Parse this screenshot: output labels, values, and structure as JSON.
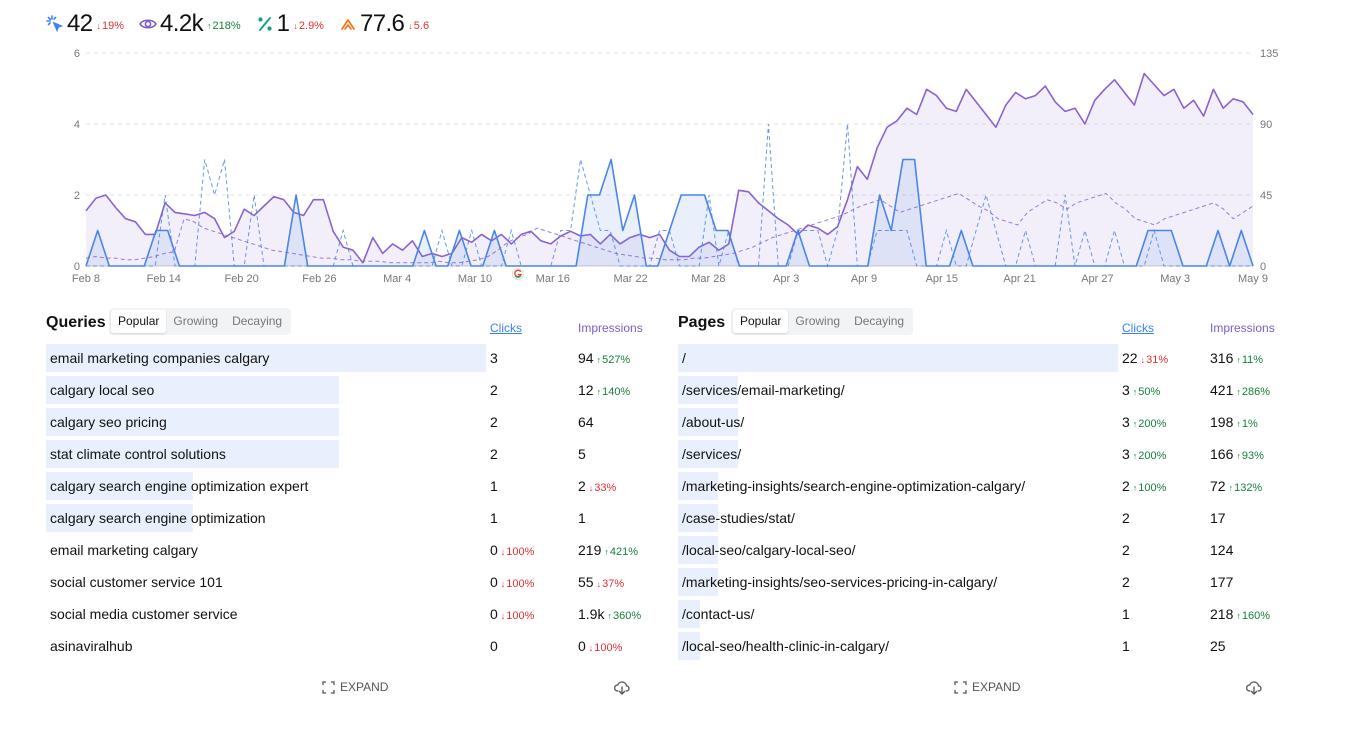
{
  "stats": [
    {
      "icon": "cursor-click-icon",
      "value": "42",
      "change": "19%",
      "dir": "down",
      "color": "#3b82f6"
    },
    {
      "icon": "eye-icon",
      "value": "4.2k",
      "change": "218%",
      "dir": "up",
      "color": "#7c5cc4"
    },
    {
      "icon": "percent-icon",
      "value": "1",
      "change": "2.9%",
      "dir": "down",
      "color": "#0f9f86"
    },
    {
      "icon": "rank-chevron-icon",
      "value": "77.6",
      "change": "5.6",
      "dir": "down",
      "color": "#f97316"
    }
  ],
  "chart_data": {
    "type": "line",
    "x_labels": [
      "Feb 8",
      "Feb 14",
      "Feb 20",
      "Feb 26",
      "Mar 4",
      "Mar 10",
      "Mar 16",
      "Mar 22",
      "Mar 28",
      "Apr 3",
      "Apr 9",
      "Apr 15",
      "Apr 21",
      "Apr 27",
      "May 3",
      "May 9"
    ],
    "y_left_ticks": [
      "0",
      "2",
      "4",
      "6"
    ],
    "y_right_ticks": [
      "0",
      "45",
      "90",
      "135"
    ],
    "ylim_left": [
      0,
      6
    ],
    "ylim_right": [
      0,
      135
    ],
    "grid": true,
    "annotation_icon": "google-icon",
    "series": [
      {
        "axis": "left",
        "style": "solid-area",
        "color": "#4a86e8",
        "values": [
          0,
          1,
          0,
          0,
          0,
          0,
          1,
          1,
          0,
          0,
          0,
          0,
          0,
          0,
          0,
          0,
          0,
          0,
          2,
          0,
          0,
          0,
          0,
          0,
          0,
          0,
          0,
          0,
          0,
          1,
          0,
          0,
          1,
          0,
          0,
          1,
          0,
          0,
          0,
          0,
          0,
          0,
          0,
          2,
          2,
          3,
          1,
          2,
          0,
          0,
          1,
          2,
          2,
          2,
          1,
          1,
          0,
          0,
          0,
          0,
          0,
          1,
          0,
          0,
          0,
          0,
          0,
          0,
          2,
          1,
          3,
          3,
          0,
          0,
          0,
          1,
          0,
          0,
          0,
          0,
          0,
          0,
          0,
          0,
          0,
          0,
          0,
          0,
          0,
          0,
          0,
          1,
          1,
          1,
          0,
          0,
          0,
          1,
          0,
          1,
          0
        ]
      },
      {
        "axis": "right",
        "style": "solid-area",
        "color": "#8b63d0",
        "values": [
          35,
          43,
          45,
          37,
          30,
          28,
          20,
          20,
          40,
          34,
          33,
          32,
          34,
          30,
          18,
          22,
          36,
          32,
          38,
          44,
          42,
          34,
          32,
          42,
          42,
          22,
          12,
          10,
          2,
          18,
          8,
          14,
          10,
          16,
          6,
          8,
          6,
          8,
          18,
          15,
          20,
          16,
          20,
          14,
          20,
          22,
          16,
          14,
          19,
          22,
          19,
          20,
          14,
          20,
          14,
          18,
          20,
          18,
          20,
          10,
          6,
          6,
          12,
          15,
          10,
          14,
          48,
          47,
          40,
          35,
          30,
          26,
          20,
          26,
          24,
          20,
          25,
          42,
          63,
          55,
          75,
          88,
          92,
          100,
          96,
          112,
          108,
          100,
          98,
          112,
          104,
          96,
          88,
          102,
          110,
          106,
          108,
          114,
          104,
          98,
          100,
          90,
          105,
          112,
          118,
          110,
          102,
          122,
          115,
          108,
          112,
          100,
          105,
          95,
          112,
          100,
          106,
          104,
          96
        ]
      },
      {
        "axis": "left",
        "style": "dashed",
        "color": "#4a86e8",
        "values": [
          0,
          0,
          0,
          0,
          0,
          0,
          0,
          0,
          2,
          0,
          0,
          0,
          3,
          2,
          3,
          0,
          0,
          2,
          0,
          0,
          0,
          0,
          0,
          0,
          0,
          0,
          1,
          0,
          0,
          0,
          0,
          0,
          0,
          0,
          0,
          0,
          1,
          0,
          0,
          1,
          0,
          0,
          0,
          1,
          0,
          0,
          0,
          0,
          1,
          1,
          3,
          2,
          1,
          1,
          0,
          0,
          0,
          0,
          1,
          1,
          0,
          0,
          0,
          2,
          0,
          1,
          0,
          0,
          0,
          4,
          0,
          0,
          1,
          1,
          1,
          0,
          1,
          4,
          0,
          0,
          1,
          1,
          1,
          1,
          0,
          0,
          0,
          1,
          0,
          0,
          1,
          2,
          1,
          0,
          0,
          1,
          0,
          0,
          0,
          2,
          0,
          1,
          0,
          0,
          1,
          0,
          0,
          0,
          1,
          0,
          0,
          0,
          0,
          0,
          0,
          0,
          0,
          0,
          0
        ]
      },
      {
        "axis": "right",
        "style": "dashed",
        "color": "#8b63d0",
        "values": [
          5,
          6,
          5,
          5,
          4,
          4,
          5,
          6,
          8,
          9,
          30,
          28,
          24,
          22,
          20,
          18,
          16,
          14,
          12,
          10,
          9,
          8,
          7,
          6,
          5,
          5,
          4,
          4,
          3,
          3,
          3,
          2,
          2,
          2,
          2,
          2,
          3,
          2,
          2,
          3,
          4,
          6,
          10,
          15,
          18,
          20,
          24,
          22,
          20,
          18,
          16,
          14,
          12,
          10,
          8,
          7,
          6,
          5,
          5,
          4,
          4,
          4,
          5,
          5,
          6,
          7,
          8,
          10,
          12,
          15,
          18,
          20,
          22,
          24,
          26,
          28,
          30,
          32,
          35,
          38,
          40,
          42,
          38,
          34,
          36,
          38,
          40,
          42,
          44,
          46,
          42,
          38,
          35,
          30,
          28,
          26,
          34,
          38,
          42,
          40,
          36,
          40,
          42,
          44,
          46,
          40,
          36,
          30,
          28,
          26,
          30,
          32,
          34,
          36,
          38,
          40,
          36,
          30,
          34,
          38
        ]
      }
    ]
  },
  "queries": {
    "title": "Queries",
    "tabs": [
      "Popular",
      "Growing",
      "Decaying"
    ],
    "active_tab": 0,
    "col_clicks": "Clicks",
    "col_impressions": "Impressions",
    "rows": [
      {
        "label": "email marketing companies calgary",
        "clicks": "3",
        "clicks_delta": "",
        "clicks_dir": "",
        "impr": "94",
        "impr_delta": "527%",
        "impr_dir": "up",
        "bar": 1.0
      },
      {
        "label": "calgary local seo",
        "clicks": "2",
        "clicks_delta": "",
        "clicks_dir": "",
        "impr": "12",
        "impr_delta": "140%",
        "impr_dir": "up",
        "bar": 0.667
      },
      {
        "label": "calgary seo pricing",
        "clicks": "2",
        "clicks_delta": "",
        "clicks_dir": "",
        "impr": "64",
        "impr_delta": "",
        "impr_dir": "",
        "bar": 0.667
      },
      {
        "label": "stat climate control solutions",
        "clicks": "2",
        "clicks_delta": "",
        "clicks_dir": "",
        "impr": "5",
        "impr_delta": "",
        "impr_dir": "",
        "bar": 0.667
      },
      {
        "label": "calgary search engine optimization expert",
        "clicks": "1",
        "clicks_delta": "",
        "clicks_dir": "",
        "impr": "2",
        "impr_delta": "33%",
        "impr_dir": "down",
        "bar": 0.333
      },
      {
        "label": "calgary search engine optimization",
        "clicks": "1",
        "clicks_delta": "",
        "clicks_dir": "",
        "impr": "1",
        "impr_delta": "",
        "impr_dir": "",
        "bar": 0.333
      },
      {
        "label": "email marketing calgary",
        "clicks": "0",
        "clicks_delta": "100%",
        "clicks_dir": "down",
        "impr": "219",
        "impr_delta": "421%",
        "impr_dir": "up",
        "bar": 0
      },
      {
        "label": "social customer service 101",
        "clicks": "0",
        "clicks_delta": "100%",
        "clicks_dir": "down",
        "impr": "55",
        "impr_delta": "37%",
        "impr_dir": "down",
        "bar": 0
      },
      {
        "label": "social media customer service",
        "clicks": "0",
        "clicks_delta": "100%",
        "clicks_dir": "down",
        "impr": "1.9k",
        "impr_delta": "360%",
        "impr_dir": "up",
        "bar": 0
      },
      {
        "label": "asinaviralhub",
        "clicks": "0",
        "clicks_delta": "",
        "clicks_dir": "",
        "impr": "0",
        "impr_delta": "100%",
        "impr_dir": "down",
        "bar": 0
      }
    ],
    "expand_label": "EXPAND"
  },
  "pages": {
    "title": "Pages",
    "tabs": [
      "Popular",
      "Growing",
      "Decaying"
    ],
    "active_tab": 0,
    "col_clicks": "Clicks",
    "col_impressions": "Impressions",
    "rows": [
      {
        "label": "/",
        "clicks": "22",
        "clicks_delta": "31%",
        "clicks_dir": "down",
        "impr": "316",
        "impr_delta": "11%",
        "impr_dir": "up",
        "bar": 1.0
      },
      {
        "label": "/services/email-marketing/",
        "clicks": "3",
        "clicks_delta": "50%",
        "clicks_dir": "up",
        "impr": "421",
        "impr_delta": "286%",
        "impr_dir": "up",
        "bar": 0.136
      },
      {
        "label": "/about-us/",
        "clicks": "3",
        "clicks_delta": "200%",
        "clicks_dir": "up",
        "impr": "198",
        "impr_delta": "1%",
        "impr_dir": "up",
        "bar": 0.136
      },
      {
        "label": "/services/",
        "clicks": "3",
        "clicks_delta": "200%",
        "clicks_dir": "up",
        "impr": "166",
        "impr_delta": "93%",
        "impr_dir": "up",
        "bar": 0.136
      },
      {
        "label": "/marketing-insights/search-engine-optimization-calgary/",
        "clicks": "2",
        "clicks_delta": "100%",
        "clicks_dir": "up",
        "impr": "72",
        "impr_delta": "132%",
        "impr_dir": "up",
        "bar": 0.091
      },
      {
        "label": "/case-studies/stat/",
        "clicks": "2",
        "clicks_delta": "",
        "clicks_dir": "",
        "impr": "17",
        "impr_delta": "",
        "impr_dir": "",
        "bar": 0.091
      },
      {
        "label": "/local-seo/calgary-local-seo/",
        "clicks": "2",
        "clicks_delta": "",
        "clicks_dir": "",
        "impr": "124",
        "impr_delta": "",
        "impr_dir": "",
        "bar": 0.091
      },
      {
        "label": "/marketing-insights/seo-services-pricing-in-calgary/",
        "clicks": "2",
        "clicks_delta": "",
        "clicks_dir": "",
        "impr": "177",
        "impr_delta": "",
        "impr_dir": "",
        "bar": 0.091
      },
      {
        "label": "/contact-us/",
        "clicks": "1",
        "clicks_delta": "",
        "clicks_dir": "",
        "impr": "218",
        "impr_delta": "160%",
        "impr_dir": "up",
        "bar": 0.045
      },
      {
        "label": "/local-seo/health-clinic-in-calgary/",
        "clicks": "1",
        "clicks_delta": "",
        "clicks_dir": "",
        "impr": "25",
        "impr_delta": "",
        "impr_dir": "",
        "bar": 0.045
      }
    ],
    "expand_label": "EXPAND"
  }
}
